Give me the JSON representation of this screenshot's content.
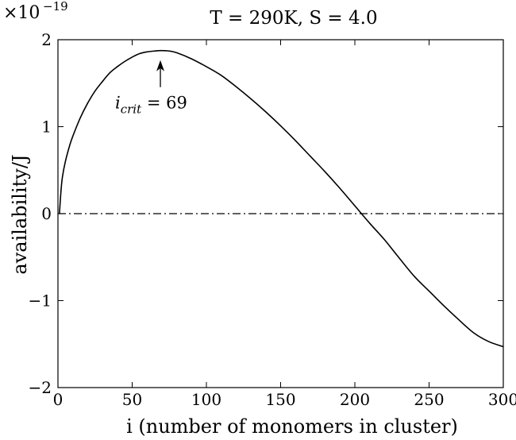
{
  "chart_data": {
    "type": "line",
    "title": "T = 290K, S = 4.0",
    "xlabel": "i (number of monomers in cluster)",
    "ylabel": "availability/J",
    "y_multiplier_base": "×10",
    "y_multiplier_exp": "−19",
    "xlim": [
      0,
      300
    ],
    "ylim": [
      -2,
      2
    ],
    "x_ticks": [
      0,
      50,
      100,
      150,
      200,
      250,
      300
    ],
    "x_tick_labels": [
      "0",
      "50",
      "100",
      "150",
      "200",
      "250",
      "300"
    ],
    "y_ticks": [
      -2,
      -1,
      0,
      1,
      2
    ],
    "y_tick_labels": [
      "−2",
      "−1",
      "0",
      "1",
      "2"
    ],
    "grid": false,
    "legend": "none",
    "reference_line": {
      "y": 0,
      "style": "dash-dot"
    },
    "series": [
      {
        "color": "#000000",
        "x": [
          1,
          2,
          3,
          5,
          8,
          10,
          15,
          20,
          25,
          30,
          35,
          40,
          45,
          50,
          55,
          60,
          65,
          69,
          75,
          80,
          90,
          100,
          110,
          120,
          130,
          140,
          150,
          160,
          170,
          180,
          190,
          200,
          210,
          220,
          228,
          240,
          250,
          260,
          270,
          280,
          290,
          300
        ],
        "y": [
          0.0,
          0.25,
          0.42,
          0.6,
          0.79,
          0.89,
          1.1,
          1.27,
          1.41,
          1.52,
          1.62,
          1.69,
          1.75,
          1.8,
          1.84,
          1.86,
          1.87,
          1.875,
          1.87,
          1.85,
          1.78,
          1.69,
          1.59,
          1.46,
          1.32,
          1.17,
          1.01,
          0.84,
          0.66,
          0.48,
          0.29,
          0.09,
          -0.11,
          -0.3,
          -0.47,
          -0.72,
          -0.89,
          -1.06,
          -1.22,
          -1.37,
          -1.47,
          -1.53
        ]
      }
    ],
    "annotation": {
      "label_base": "i",
      "label_sub": "crit",
      "label_rest": " = 69",
      "x": 69,
      "y": 1.875
    }
  }
}
